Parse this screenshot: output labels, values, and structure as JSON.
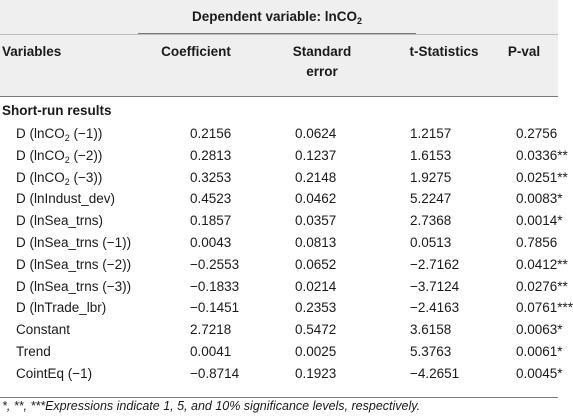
{
  "table": {
    "dependent_prefix": "Dependent variable: lnCO",
    "dependent_sub": "2",
    "headers": {
      "variables": "Variables",
      "coefficient": "Coefficient",
      "standard_error_1": "Standard",
      "standard_error_2": "error",
      "t_statistics": "t-Statistics",
      "p_value": "P-val"
    },
    "section_title": "Short-run results",
    "rows": [
      {
        "var_pre": "D (lnCO",
        "var_sub": "2",
        "var_post": " (−1))",
        "coef": "0.2156",
        "se": "0.0624",
        "t": "1.2157",
        "p": "0.2756"
      },
      {
        "var_pre": "D (lnCO",
        "var_sub": "2",
        "var_post": " (−2))",
        "coef": "0.2813",
        "se": "0.1237",
        "t": "1.6153",
        "p": "0.0336**"
      },
      {
        "var_pre": "D (lnCO",
        "var_sub": "2",
        "var_post": " (−3))",
        "coef": "0.3253",
        "se": "0.2148",
        "t": "1.9275",
        "p": "0.0251**"
      },
      {
        "var_pre": "D (lnIndust_dev)",
        "var_sub": "",
        "var_post": "",
        "coef": "0.4523",
        "se": "0.0462",
        "t": "5.2247",
        "p": "0.0083*"
      },
      {
        "var_pre": "D (lnSea_trns)",
        "var_sub": "",
        "var_post": "",
        "coef": "0.1857",
        "se": "0.0357",
        "t": "2.7368",
        "p": "0.0014*"
      },
      {
        "var_pre": "D (lnSea_trns (−1))",
        "var_sub": "",
        "var_post": "",
        "coef": "0.0043",
        "se": "0.0813",
        "t": "0.0513",
        "p": "0.7856"
      },
      {
        "var_pre": "D (lnSea_trns (−2))",
        "var_sub": "",
        "var_post": "",
        "coef": "−0.2553",
        "se": "0.0652",
        "t": "−2.7162",
        "p": "0.0412**"
      },
      {
        "var_pre": "D (lnSea_trns (−3))",
        "var_sub": "",
        "var_post": "",
        "coef": "−0.1833",
        "se": "0.0214",
        "t": "−3.7124",
        "p": "0.0276**"
      },
      {
        "var_pre": "D (lnTrade_lbr)",
        "var_sub": "",
        "var_post": "",
        "coef": "−0.1451",
        "se": "0.2353",
        "t": "−2.4163",
        "p": "0.0761***"
      },
      {
        "var_pre": "Constant",
        "var_sub": "",
        "var_post": "",
        "coef": "2.7218",
        "se": "0.5472",
        "t": "3.6158",
        "p": "0.0063*"
      },
      {
        "var_pre": "Trend",
        "var_sub": "",
        "var_post": "",
        "coef": "0.0041",
        "se": "0.0025",
        "t": "5.3763",
        "p": "0.0061*"
      },
      {
        "var_pre": "CointEq (−1)",
        "var_sub": "",
        "var_post": "",
        "coef": "−0.8714",
        "se": "0.1923",
        "t": "−4.2651",
        "p": "0.0045*"
      }
    ],
    "footnote": "*, **, ***Expressions indicate 1, 5, and 10% significance levels, respectively."
  }
}
